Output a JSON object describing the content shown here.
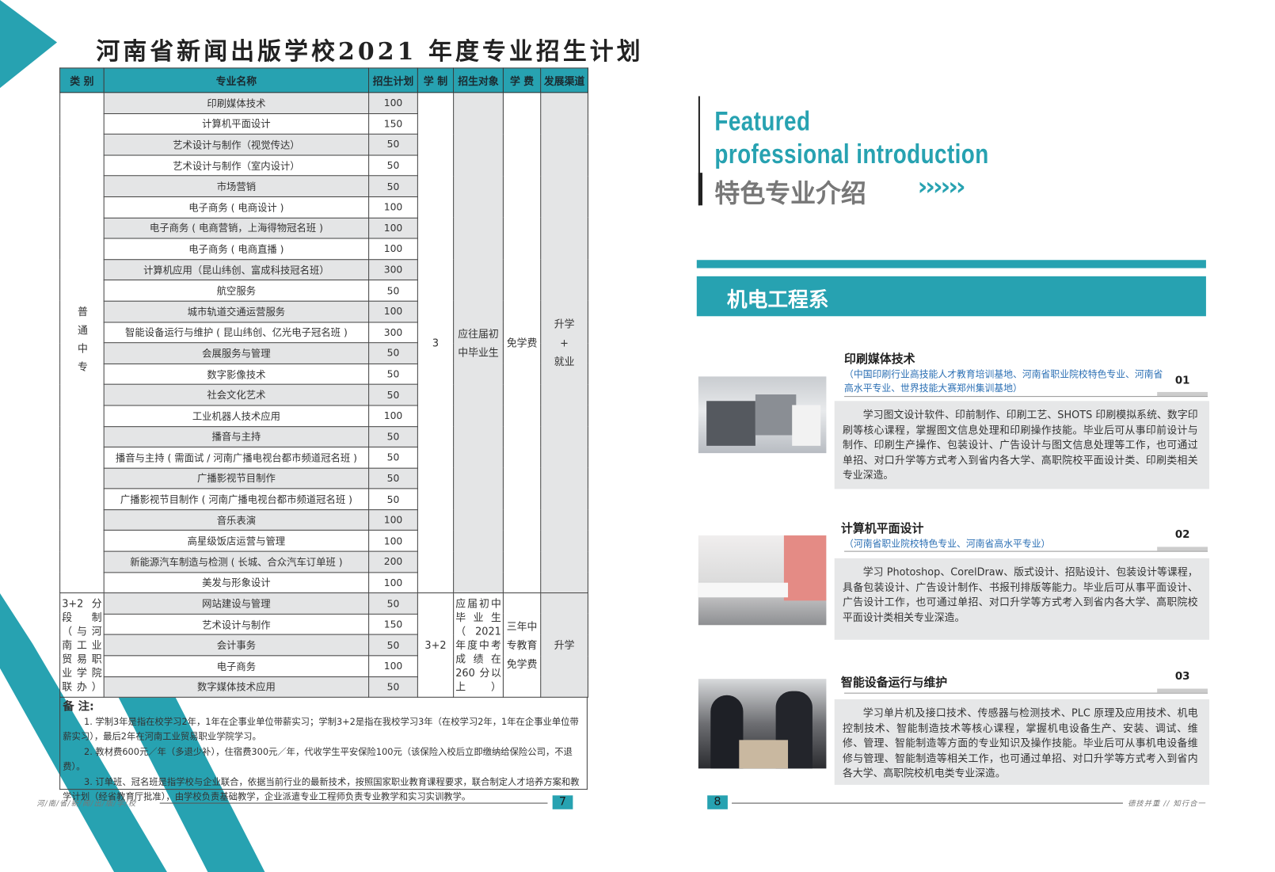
{
  "left_page": {
    "title": "河南省新闻出版学校2021 年度专业招生计划",
    "table": {
      "headers": [
        "类 别",
        "专业名称",
        "招生计划",
        "学 制",
        "招生对象",
        "学 费",
        "发展渠道"
      ],
      "groups": [
        {
          "category": "普通中专",
          "duration": "3",
          "target": "应往届初中毕业生",
          "tuition": "免学费",
          "pathway": "升学 + 就业",
          "rows": [
            [
              "印刷媒体技术",
              "100"
            ],
            [
              "计算机平面设计",
              "150"
            ],
            [
              "艺术设计与制作（视觉传达）",
              "50"
            ],
            [
              "艺术设计与制作（室内设计）",
              "50"
            ],
            [
              "市场营销",
              "50"
            ],
            [
              "电子商务 ( 电商设计 )",
              "100"
            ],
            [
              "电子商务 ( 电商营销，上海得物冠名班 )",
              "100"
            ],
            [
              "电子商务 ( 电商直播 )",
              "100"
            ],
            [
              "计算机应用（昆山纬创、富成科技冠名班）",
              "300"
            ],
            [
              "航空服务",
              "50"
            ],
            [
              "城市轨道交通运营服务",
              "100"
            ],
            [
              "智能设备运行与维护 ( 昆山纬创、亿光电子冠名班 )",
              "300"
            ],
            [
              "会展服务与管理",
              "50"
            ],
            [
              "数字影像技术",
              "50"
            ],
            [
              "社会文化艺术",
              "50"
            ],
            [
              "工业机器人技术应用",
              "100"
            ],
            [
              "播音与主持",
              "50"
            ],
            [
              "播音与主持 ( 需面试 / 河南广播电视台都市频道冠名班 )",
              "50"
            ],
            [
              "广播影视节目制作",
              "50"
            ],
            [
              "广播影视节目制作 ( 河南广播电视台都市频道冠名班 )",
              "50"
            ],
            [
              "音乐表演",
              "100"
            ],
            [
              "高星级饭店运营与管理",
              "100"
            ],
            [
              "新能源汽车制造与检测 ( 长城、合众汽车订单班 )",
              "200"
            ],
            [
              "美发与形象设计",
              "100"
            ]
          ]
        },
        {
          "category": "3+2 分段制（与河南工业贸易职业学院联办）",
          "duration": "3+2",
          "target": "应届初中毕业生（2021 年度中考成绩在 260 分以上）",
          "tuition": "三年中专教育免学费",
          "pathway": "升学",
          "rows": [
            [
              "网站建设与管理",
              "50"
            ],
            [
              "艺术设计与制作",
              "150"
            ],
            [
              "会计事务",
              "50"
            ],
            [
              "电子商务",
              "100"
            ],
            [
              "数字媒体技术应用",
              "50"
            ]
          ]
        }
      ]
    },
    "notes": {
      "heading": "备 注:",
      "items": [
        "1. 学制3年是指在校学习2年，1年在企事业单位带薪实习；学制3+2是指在我校学习3年（在校学习2年，1年在企事业单位带薪实习），最后2年在河南工业贸易职业学院学习。",
        "2. 教材费600元／年（多退少补），住宿费300元／年，代收学生平安保险100元（该保险入校后立即缴纳给保险公司，不退费）。",
        "3. 订单班、冠名班是指学校与企业联合，依据当前行业的最新技术，按照国家职业教育课程要求，联合制定人才培养方案和教学计划（经省教育厅批准），由学校负责基础教学，企业派遣专业工程师负责专业教学和实习实训教学。"
      ]
    },
    "footer_text": "河/南/省/新/闻/出/版/学/校",
    "page_number": "7"
  },
  "right_page": {
    "heading_en_1": "Featured",
    "heading_en_2": "professional  introduction",
    "heading_cn": "特色专业介绍",
    "chevrons": "››››››",
    "department": "机电工程系",
    "majors": [
      {
        "title": "印刷媒体技术",
        "subtitle": "（中国印刷行业高技能人才教育培训基地、河南省职业院校特色专业、河南省高水平专业、世界技能大赛郑州集训基地）",
        "number": "01",
        "description": "学习图文设计软件、印前制作、印刷工艺、SHOTS 印刷模拟系统、数字印刷等核心课程，掌握图文信息处理和印刷操作技能。毕业后可从事印前设计与制作、印刷生产操作、包装设计、广告设计与图文信息处理等工作，也可通过单招、对口升学等方式考入到省内各大学、高职院校平面设计类、印刷类相关专业深造。"
      },
      {
        "title": "计算机平面设计",
        "subtitle": "（河南省职业院校特色专业、河南省高水平专业）",
        "number": "02",
        "description": "学习 Photoshop、CorelDraw、版式设计、招贴设计、包装设计等课程，具备包装设计、广告设计制作、书报刊排版等能力。毕业后可从事平面设计、广告设计工作，也可通过单招、对口升学等方式考入到省内各大学、高职院校平面设计类相关专业深造。"
      },
      {
        "title": "智能设备运行与维护",
        "subtitle": "",
        "number": "03",
        "description": "学习单片机及接口技术、传感器与检测技术、PLC 原理及应用技术、机电控制技术、智能制造技术等核心课程，掌握机电设备生产、安装、调试、维修、管理、智能制造等方面的专业知识及操作技能。毕业后可从事机电设备维修与管理、智能制造等相关工作，也可通过单招、对口升学等方式考入到省内各大学、高职院校机电类专业深造。"
      }
    ],
    "footer_text": "德技并重 // 知行合一",
    "page_number": "8"
  },
  "colors": {
    "accent": "#27a2b1",
    "subtitle_blue": "#2b6fb4",
    "desc_bg": "#e6e7e8"
  }
}
